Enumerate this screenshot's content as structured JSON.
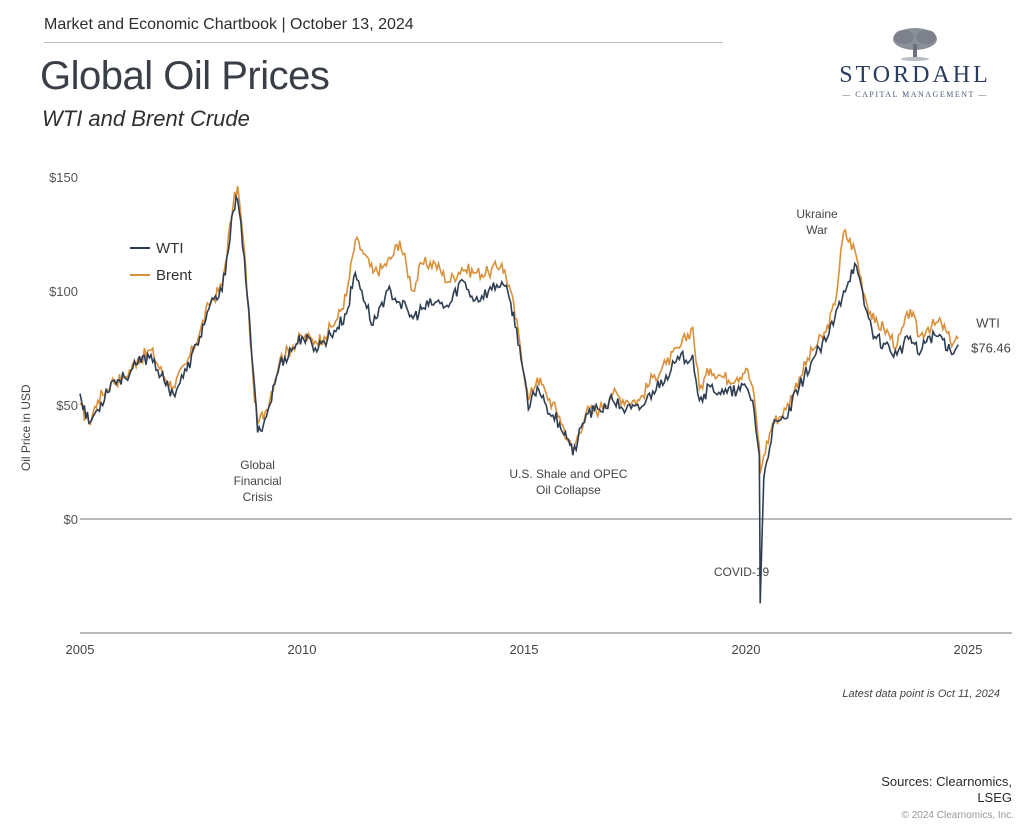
{
  "header": {
    "chartbook": "Market and Economic Chartbook | October 13, 2024",
    "title": "Global Oil Prices",
    "subtitle": "WTI and Brent Crude"
  },
  "logo": {
    "brand": "STORDAHL",
    "tagline": "— CAPITAL MANAGEMENT —",
    "icon": "oak-tree-icon"
  },
  "footer": {
    "latest": "Latest data point is Oct 11, 2024",
    "sources_line1": "Sources: Clearnomics,",
    "sources_line2": "LSEG",
    "copyright": "© 2024 Clearnomics, Inc."
  },
  "chart_data": {
    "type": "line",
    "title": "Global Oil Prices",
    "subtitle": "WTI and Brent Crude",
    "xlabel": "",
    "ylabel": "Oil Price in USD",
    "xlim": [
      2005,
      2025
    ],
    "ylim": [
      -50,
      150
    ],
    "x_ticks": [
      2005,
      2010,
      2015,
      2020,
      2025
    ],
    "x_tick_labels": [
      "2005",
      "2010",
      "2015",
      "2020",
      "2025"
    ],
    "y_ticks": [
      0,
      50,
      100,
      150
    ],
    "y_tick_labels": [
      "$0",
      "$50",
      "$100",
      "$150"
    ],
    "grid": false,
    "legend": {
      "position": "top-left",
      "entries": [
        "WTI",
        "Brent"
      ]
    },
    "colors": {
      "WTI": "#2f3e52",
      "Brent": "#d9903a",
      "axis": "#777777",
      "text": "#444444"
    },
    "series": [
      {
        "name": "WTI",
        "x": [
          2005.0,
          2005.2,
          2005.4,
          2005.7,
          2006.0,
          2006.3,
          2006.6,
          2006.9,
          2007.1,
          2007.4,
          2007.7,
          2007.9,
          2008.2,
          2008.45,
          2008.55,
          2008.7,
          2008.9,
          2009.0,
          2009.2,
          2009.5,
          2009.8,
          2010.0,
          2010.3,
          2010.5,
          2010.8,
          2011.0,
          2011.2,
          2011.35,
          2011.6,
          2011.8,
          2012.0,
          2012.2,
          2012.5,
          2012.7,
          2013.0,
          2013.3,
          2013.6,
          2013.9,
          2014.2,
          2014.5,
          2014.7,
          2014.9,
          2015.1,
          2015.3,
          2015.5,
          2015.8,
          2016.0,
          2016.1,
          2016.4,
          2016.7,
          2017.0,
          2017.3,
          2017.6,
          2017.9,
          2018.2,
          2018.5,
          2018.8,
          2018.95,
          2019.2,
          2019.5,
          2019.8,
          2020.0,
          2020.15,
          2020.3,
          2020.32,
          2020.4,
          2020.6,
          2020.9,
          2021.2,
          2021.5,
          2021.8,
          2022.0,
          2022.2,
          2022.45,
          2022.7,
          2022.9,
          2023.1,
          2023.4,
          2023.7,
          2023.9,
          2024.1,
          2024.4,
          2024.6,
          2024.78
        ],
        "y": [
          55,
          42,
          48,
          60,
          62,
          68,
          72,
          60,
          55,
          65,
          80,
          92,
          100,
          135,
          140,
          115,
          65,
          38,
          45,
          68,
          75,
          80,
          75,
          78,
          84,
          90,
          108,
          100,
          85,
          95,
          100,
          95,
          88,
          92,
          95,
          93,
          105,
          96,
          100,
          104,
          95,
          76,
          48,
          58,
          50,
          42,
          35,
          28,
          46,
          48,
          52,
          48,
          48,
          56,
          63,
          70,
          72,
          52,
          58,
          55,
          56,
          58,
          52,
          28,
          -37,
          18,
          40,
          44,
          58,
          70,
          78,
          88,
          100,
          112,
          92,
          80,
          77,
          72,
          80,
          72,
          80,
          80,
          74,
          76.46
        ]
      },
      {
        "name": "Brent",
        "x": [
          2005.0,
          2005.2,
          2005.4,
          2005.7,
          2006.0,
          2006.3,
          2006.6,
          2006.9,
          2007.1,
          2007.4,
          2007.7,
          2007.9,
          2008.2,
          2008.45,
          2008.55,
          2008.7,
          2008.9,
          2009.0,
          2009.2,
          2009.5,
          2009.8,
          2010.0,
          2010.3,
          2010.5,
          2010.8,
          2011.0,
          2011.2,
          2011.35,
          2011.6,
          2011.8,
          2012.0,
          2012.2,
          2012.5,
          2012.7,
          2013.0,
          2013.3,
          2013.6,
          2013.9,
          2014.2,
          2014.5,
          2014.7,
          2014.9,
          2015.1,
          2015.3,
          2015.5,
          2015.8,
          2016.0,
          2016.1,
          2016.4,
          2016.7,
          2017.0,
          2017.3,
          2017.6,
          2017.9,
          2018.2,
          2018.5,
          2018.8,
          2018.95,
          2019.2,
          2019.5,
          2019.8,
          2020.0,
          2020.15,
          2020.3,
          2020.32,
          2020.4,
          2020.6,
          2020.9,
          2021.2,
          2021.5,
          2021.8,
          2022.0,
          2022.2,
          2022.45,
          2022.7,
          2022.9,
          2023.1,
          2023.4,
          2023.7,
          2023.9,
          2024.1,
          2024.4,
          2024.6,
          2024.78
        ],
        "y": [
          50,
          42,
          52,
          60,
          62,
          70,
          74,
          62,
          58,
          68,
          82,
          94,
          102,
          138,
          146,
          118,
          60,
          42,
          48,
          70,
          76,
          80,
          78,
          80,
          88,
          98,
          122,
          118,
          108,
          110,
          114,
          122,
          100,
          112,
          112,
          104,
          110,
          108,
          108,
          112,
          100,
          78,
          52,
          62,
          55,
          45,
          34,
          30,
          47,
          48,
          55,
          52,
          52,
          62,
          68,
          75,
          84,
          57,
          66,
          62,
          62,
          66,
          58,
          32,
          20,
          28,
          42,
          48,
          62,
          74,
          82,
          94,
          126,
          118,
          96,
          86,
          84,
          76,
          92,
          80,
          84,
          86,
          78,
          79
        ]
      }
    ],
    "annotations": [
      {
        "text_lines": [
          "Global",
          "Financial",
          "Crisis"
        ],
        "x": 2009.0,
        "y": 22
      },
      {
        "text_lines": [
          "U.S. Shale and OPEC",
          "Oil Collapse"
        ],
        "x": 2016.0,
        "y": 18
      },
      {
        "text_lines": [
          "COVID-19"
        ],
        "x": 2019.9,
        "y": -25
      },
      {
        "text_lines": [
          "Ukraine",
          "War"
        ],
        "x": 2021.6,
        "y": 132
      }
    ],
    "end_label": {
      "series": "WTI",
      "label": "WTI",
      "value_label": "$76.46"
    }
  }
}
